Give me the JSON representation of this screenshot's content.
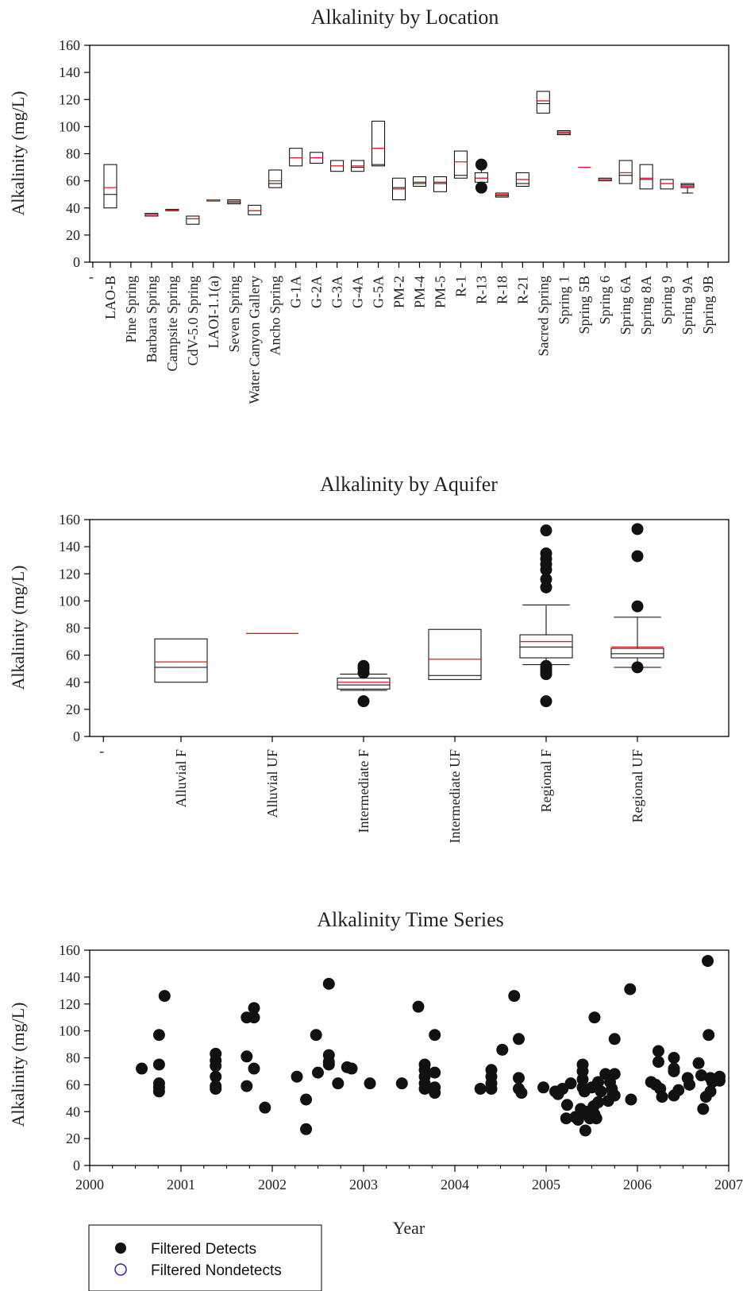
{
  "chart_data": [
    {
      "type": "box",
      "title": "Alkalinity by Location",
      "xlabel": "",
      "ylabel": "Alkalinity (mg/L)",
      "ylim": [
        0,
        160
      ],
      "yticks": [
        0,
        20,
        40,
        60,
        80,
        100,
        120,
        140,
        160
      ],
      "first_tick_label": "-",
      "categories": [
        "LAO-B",
        "Pine Spring",
        "Barbara Spring",
        "Campsite Spring",
        "CdV-5.0 Spring",
        "LAOI-1.1(a)",
        "Seven Spring",
        "Water Canyon Gallery",
        "Ancho Spring",
        "G-1A",
        "G-2A",
        "G-3A",
        "G-4A",
        "G-5A",
        "PM-2",
        "PM-4",
        "PM-5",
        "R-1",
        "R-13",
        "R-18",
        "R-21",
        "Sacred Spring",
        "Spring 1",
        "Spring 5B",
        "Spring 6",
        "Spring 6A",
        "Spring 8A",
        "Spring 9",
        "Spring 9A",
        "Spring 9B"
      ],
      "boxes": [
        {
          "q1": 40,
          "q3": 72,
          "median": 50,
          "mean": 55
        },
        null,
        {
          "q1": 34,
          "q3": 36,
          "median": 35,
          "mean": 35
        },
        {
          "q1": 38,
          "q3": 39,
          "median": 38.5,
          "mean": 38.5
        },
        {
          "q1": 28,
          "q3": 34,
          "median": 32,
          "mean": 32
        },
        {
          "q1": 46,
          "q3": 46,
          "median": 46,
          "mean": 46
        },
        {
          "q1": 43,
          "q3": 46,
          "median": 44,
          "mean": 45
        },
        {
          "q1": 35,
          "q3": 42,
          "median": 38,
          "mean": 38
        },
        {
          "q1": 55,
          "q3": 68,
          "median": 58,
          "mean": 60
        },
        {
          "q1": 71,
          "q3": 84,
          "median": 77,
          "mean": 77
        },
        {
          "q1": 73,
          "q3": 81,
          "median": 77,
          "mean": 77
        },
        {
          "q1": 67,
          "q3": 75,
          "median": 71,
          "mean": 71
        },
        {
          "q1": 67,
          "q3": 75,
          "median": 70,
          "mean": 71
        },
        {
          "q1": 71,
          "q3": 104,
          "median": 72,
          "mean": 84
        },
        {
          "q1": 46,
          "q3": 62,
          "median": 55,
          "mean": 54
        },
        {
          "q1": 56,
          "q3": 63,
          "median": 58,
          "mean": 59
        },
        {
          "q1": 52,
          "q3": 63,
          "median": 58,
          "mean": 59
        },
        {
          "q1": 62,
          "q3": 82,
          "median": 64,
          "mean": 74,
          "whisker_low": 62,
          "whisker_high": 82
        },
        {
          "q1": 59,
          "q3": 66,
          "median": 62,
          "mean": 62,
          "whisker_low": 55,
          "whisker_high": 72,
          "outliers": [
            55,
            72
          ]
        },
        {
          "q1": 48,
          "q3": 51,
          "median": 49,
          "mean": 50
        },
        {
          "q1": 56,
          "q3": 66,
          "median": 58,
          "mean": 61
        },
        {
          "q1": 110,
          "q3": 126,
          "median": 117,
          "mean": 119
        },
        {
          "q1": 94,
          "q3": 97,
          "median": 95,
          "mean": 96
        },
        {
          "q1": 70,
          "q3": 70,
          "median": 70,
          "mean": 70,
          "mean_only": true
        },
        {
          "q1": 60,
          "q3": 62,
          "median": 61,
          "mean": 61
        },
        {
          "q1": 58,
          "q3": 75,
          "median": 64,
          "mean": 66
        },
        {
          "q1": 54,
          "q3": 72,
          "median": 61,
          "mean": 62
        },
        {
          "q1": 54,
          "q3": 61,
          "median": 58,
          "mean": 58
        },
        {
          "q1": 55,
          "q3": 58,
          "median": 57,
          "mean": 56,
          "whisker_low": 51,
          "whisker_high": 58
        },
        null
      ]
    },
    {
      "type": "box",
      "title": "Alkalinity by Aquifer",
      "xlabel": "",
      "ylabel": "Alkalinity (mg/L)",
      "ylim": [
        0,
        160
      ],
      "yticks": [
        0,
        20,
        40,
        60,
        80,
        100,
        120,
        140,
        160
      ],
      "first_tick_label": "-",
      "categories": [
        "Alluvial F",
        "Alluvial UF",
        "Intermediate F",
        "Intermediate UF",
        "Regional F",
        "Regional UF"
      ],
      "boxes": [
        {
          "q1": 40,
          "q3": 72,
          "median": 51,
          "mean": 55
        },
        {
          "q1": 76,
          "q3": 76,
          "median": 76,
          "mean": 76,
          "mean_only": true
        },
        {
          "q1": 35,
          "q3": 43,
          "median": 38,
          "mean": 40,
          "whisker_low": 34,
          "whisker_high": 46,
          "outliers": [
            26,
            47,
            50,
            52
          ]
        },
        {
          "q1": 42,
          "q3": 79,
          "median": 45,
          "mean": 57
        },
        {
          "q1": 58,
          "q3": 75,
          "median": 66,
          "mean": 70,
          "whisker_low": 53,
          "whisker_high": 97,
          "outliers": [
            26,
            46,
            48,
            50,
            52,
            110,
            116,
            123,
            127,
            131,
            135,
            152
          ]
        },
        {
          "q1": 58,
          "q3": 65,
          "median": 61,
          "mean": 66,
          "whisker_low": 51,
          "whisker_high": 88,
          "outliers": [
            51,
            96,
            133,
            153
          ]
        }
      ]
    },
    {
      "type": "scatter",
      "title": "Alkalinity Time Series",
      "xlabel": "Year",
      "ylabel": "Alkalinity (mg/L)",
      "xlim": [
        2000,
        2007
      ],
      "ylim": [
        0,
        160
      ],
      "xticks": [
        2000,
        2001,
        2002,
        2003,
        2004,
        2005,
        2006,
        2007
      ],
      "yticks": [
        0,
        20,
        40,
        60,
        80,
        100,
        120,
        140,
        160
      ],
      "legend": {
        "position": "bottom-left",
        "entries": [
          "Filtered Detects",
          "Filtered Nondetects"
        ]
      },
      "series": [
        {
          "name": "Filtered Detects",
          "points": [
            [
              2000.57,
              72
            ],
            [
              2000.76,
              97
            ],
            [
              2000.76,
              75
            ],
            [
              2000.76,
              61
            ],
            [
              2000.76,
              58
            ],
            [
              2000.76,
              55
            ],
            [
              2000.82,
              126
            ],
            [
              2001.38,
              83
            ],
            [
              2001.38,
              78
            ],
            [
              2001.38,
              74
            ],
            [
              2001.38,
              66
            ],
            [
              2001.38,
              59
            ],
            [
              2001.38,
              57
            ],
            [
              2001.72,
              110
            ],
            [
              2001.72,
              81
            ],
            [
              2001.72,
              59
            ],
            [
              2001.8,
              117
            ],
            [
              2001.8,
              110
            ],
            [
              2001.8,
              72
            ],
            [
              2001.92,
              43
            ],
            [
              2002.27,
              66
            ],
            [
              2002.37,
              49
            ],
            [
              2002.37,
              27
            ],
            [
              2002.48,
              97
            ],
            [
              2002.5,
              69
            ],
            [
              2002.62,
              135
            ],
            [
              2002.62,
              82
            ],
            [
              2002.62,
              77
            ],
            [
              2002.62,
              75
            ],
            [
              2002.72,
              61
            ],
            [
              2002.82,
              73
            ],
            [
              2002.87,
              72
            ],
            [
              2003.07,
              61
            ],
            [
              2003.42,
              61
            ],
            [
              2003.6,
              118
            ],
            [
              2003.67,
              75
            ],
            [
              2003.67,
              71
            ],
            [
              2003.67,
              66
            ],
            [
              2003.67,
              61
            ],
            [
              2003.67,
              57
            ],
            [
              2003.78,
              97
            ],
            [
              2003.78,
              69
            ],
            [
              2003.78,
              58
            ],
            [
              2003.78,
              54
            ],
            [
              2004.28,
              57
            ],
            [
              2004.4,
              71
            ],
            [
              2004.4,
              66
            ],
            [
              2004.4,
              61
            ],
            [
              2004.4,
              57
            ],
            [
              2004.52,
              86
            ],
            [
              2004.65,
              126
            ],
            [
              2004.7,
              94
            ],
            [
              2004.7,
              65
            ],
            [
              2004.7,
              57
            ],
            [
              2004.73,
              54
            ],
            [
              2004.97,
              58
            ],
            [
              2005.1,
              55
            ],
            [
              2005.13,
              53
            ],
            [
              2005.18,
              57
            ],
            [
              2005.22,
              35
            ],
            [
              2005.23,
              45
            ],
            [
              2005.27,
              61
            ],
            [
              2005.32,
              36
            ],
            [
              2005.35,
              34
            ],
            [
              2005.38,
              42
            ],
            [
              2005.38,
              38
            ],
            [
              2005.4,
              75
            ],
            [
              2005.4,
              70
            ],
            [
              2005.4,
              64
            ],
            [
              2005.4,
              58
            ],
            [
              2005.42,
              55
            ],
            [
              2005.43,
              26
            ],
            [
              2005.45,
              40
            ],
            [
              2005.48,
              35
            ],
            [
              2005.5,
              58
            ],
            [
              2005.52,
              44
            ],
            [
              2005.53,
              110
            ],
            [
              2005.53,
              38
            ],
            [
              2005.55,
              35
            ],
            [
              2005.57,
              47
            ],
            [
              2005.57,
              62
            ],
            [
              2005.6,
              55
            ],
            [
              2005.65,
              68
            ],
            [
              2005.68,
              48
            ],
            [
              2005.7,
              62
            ],
            [
              2005.72,
              57
            ],
            [
              2005.73,
              53
            ],
            [
              2005.75,
              94
            ],
            [
              2005.75,
              68
            ],
            [
              2005.75,
              52
            ],
            [
              2005.92,
              131
            ],
            [
              2005.93,
              49
            ],
            [
              2006.15,
              62
            ],
            [
              2006.2,
              60
            ],
            [
              2006.23,
              85
            ],
            [
              2006.23,
              77
            ],
            [
              2006.25,
              57
            ],
            [
              2006.27,
              51
            ],
            [
              2006.4,
              80
            ],
            [
              2006.4,
              72
            ],
            [
              2006.4,
              70
            ],
            [
              2006.4,
              52
            ],
            [
              2006.45,
              56
            ],
            [
              2006.55,
              65
            ],
            [
              2006.57,
              60
            ],
            [
              2006.67,
              76
            ],
            [
              2006.7,
              67
            ],
            [
              2006.72,
              42
            ],
            [
              2006.75,
              51
            ],
            [
              2006.77,
              152
            ],
            [
              2006.78,
              97
            ],
            [
              2006.8,
              65
            ],
            [
              2006.8,
              55
            ],
            [
              2006.82,
              62
            ],
            [
              2006.9,
              66
            ],
            [
              2006.9,
              63
            ]
          ]
        },
        {
          "name": "Filtered Nondetects",
          "points": []
        }
      ]
    }
  ]
}
